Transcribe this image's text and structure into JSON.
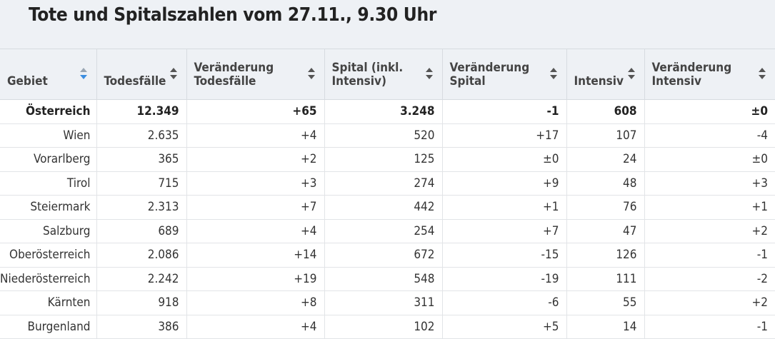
{
  "title": "Tote und Spitalszahlen vom 27.11., 9.30 Uhr",
  "columns": [
    {
      "label": "Gebiet",
      "sort": "down"
    },
    {
      "label": "Todesfälle",
      "sort": "none"
    },
    {
      "label": "Veränderung Todesfälle",
      "sort": "none"
    },
    {
      "label": "Spital (inkl. Intensiv)",
      "sort": "none"
    },
    {
      "label": "Veränderung Spital",
      "sort": "none"
    },
    {
      "label": "Intensiv",
      "sort": "none"
    },
    {
      "label": "Veränderung Intensiv",
      "sort": "none"
    }
  ],
  "rows": [
    [
      "Österreich",
      "12.349",
      "+65",
      "3.248",
      "-1",
      "608",
      "±0"
    ],
    [
      "Wien",
      "2.635",
      "+4",
      "520",
      "+17",
      "107",
      "-4"
    ],
    [
      "Vorarlberg",
      "365",
      "+2",
      "125",
      "±0",
      "24",
      "±0"
    ],
    [
      "Tirol",
      "715",
      "+3",
      "274",
      "+9",
      "48",
      "+3"
    ],
    [
      "Steiermark",
      "2.313",
      "+7",
      "442",
      "+1",
      "76",
      "+1"
    ],
    [
      "Salzburg",
      "689",
      "+4",
      "254",
      "+7",
      "47",
      "+2"
    ],
    [
      "Oberösterreich",
      "2.086",
      "+14",
      "672",
      "-15",
      "126",
      "-1"
    ],
    [
      "Niederösterreich",
      "2.242",
      "+19",
      "548",
      "-19",
      "111",
      "-2"
    ],
    [
      "Kärnten",
      "918",
      "+8",
      "311",
      "-6",
      "55",
      "+2"
    ],
    [
      "Burgenland",
      "386",
      "+4",
      "102",
      "+5",
      "14",
      "-1"
    ]
  ],
  "icons": {
    "sort": "sort-arrows-icon"
  },
  "colors": {
    "header_bg": "#eef1f5",
    "active_sort": "#3b8de0"
  }
}
